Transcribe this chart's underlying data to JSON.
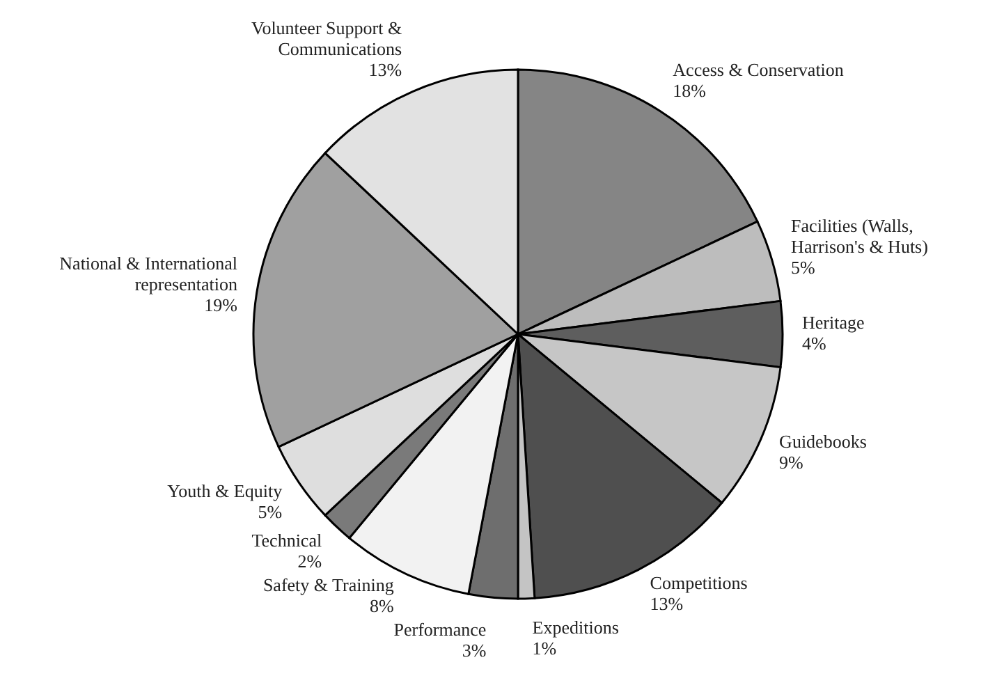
{
  "chart_data": {
    "type": "pie",
    "categories": [
      "Access & Conservation",
      "Facilities (Walls, Harrison's & Huts)",
      "Heritage",
      "Guidebooks",
      "Competitions",
      "Expeditions",
      "Performance",
      "Safety & Training",
      "Technical",
      "Youth & Equity",
      "National & International representation",
      "Volunteer Support & Communications"
    ],
    "values": [
      18,
      5,
      4,
      9,
      13,
      1,
      3,
      8,
      2,
      5,
      19,
      13
    ],
    "value_labels": [
      "18%",
      "5%",
      "4%",
      "9%",
      "13%",
      "1%",
      "3%",
      "8%",
      "2%",
      "5%",
      "19%",
      "13%"
    ],
    "colors": [
      "#858585",
      "#bdbdbd",
      "#5e5e5e",
      "#c6c6c6",
      "#4f4f4f",
      "#c4c4c4",
      "#6e6e6e",
      "#f2f2f2",
      "#7a7a7a",
      "#dedede",
      "#a0a0a0",
      "#e2e2e2"
    ]
  }
}
